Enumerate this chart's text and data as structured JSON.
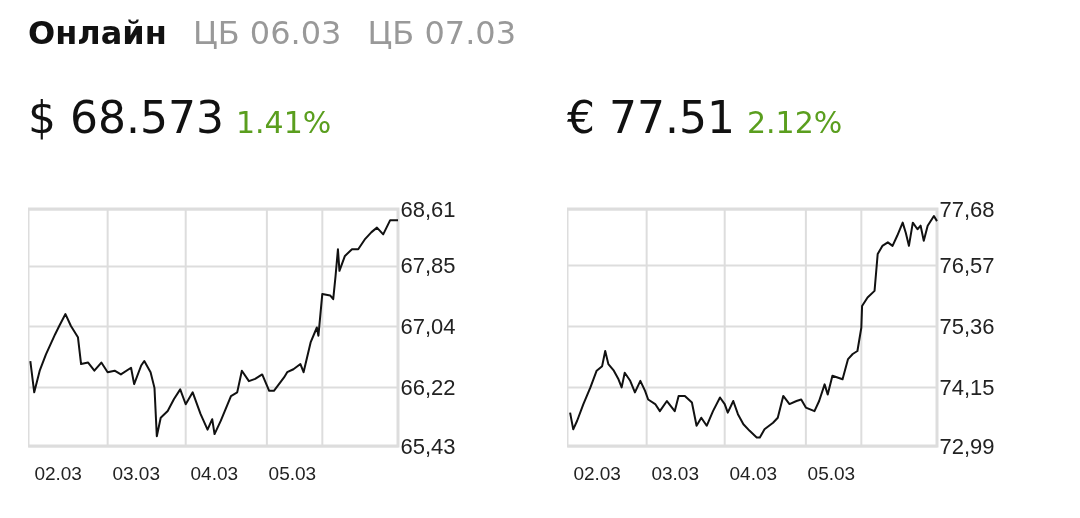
{
  "chart_data": [
    {
      "type": "line",
      "title": "$ 68.573",
      "subtitle": "1.41%",
      "annotations": [
        "Онлайн",
        "ЦБ 06.03",
        "ЦБ 07.03"
      ],
      "x": [
        "--03-01T15:36",
        "--03-01T16:48",
        "--03-01T18:29",
        "--03-01T20:24",
        "--03-01T23:14",
        "--03-02T00:29",
        "--03-02T02:24",
        "--03-02T04:05",
        "--03-02T06:14",
        "--03-02T07:12",
        "--03-02T09:22",
        "--03-02T11:17",
        "--03-02T13:26",
        "--03-02T15:22",
        "--03-02T17:31",
        "--03-02T19:26",
        "--03-02T22:34",
        "--03-02T23:31",
        "--03-03T01:41",
        "--03-03T02:38",
        "--03-03T04:34",
        "--03-03T05:46",
        "--03-03T06:29",
        "--03-03T07:41",
        "--03-03T09:50",
        "--03-03T11:46",
        "--03-03T13:41",
        "--03-03T15:22",
        "--03-03T17:31",
        "--03-03T19:55",
        "--03-03T22:05",
        "--03-03T23:31",
        "--03-04T00:14",
        "--03-04T02:10",
        "--03-04T05:17",
        "--03-04T07:12",
        "--03-04T08:38",
        "--03-04T10:48",
        "--03-04T12:43",
        "--03-04T14:53",
        "--03-04T17:02",
        "--03-04T18:29",
        "--03-04T21:36",
        "--03-04T22:34",
        "--03-05T00:29",
        "--03-05T02:38",
        "--03-05T03:36",
        "--03-05T05:46",
        "--03-05T07:41",
        "--03-05T08:10",
        "--03-05T09:22",
        "--03-05T11:46",
        "--03-05T12:43",
        "--03-05T13:26",
        "--03-05T14:10",
        "--03-05T14:38",
        "--03-05T16:19",
        "--03-05T18:29",
        "--03-05T20:24",
        "--03-05T22:34",
        "--03-06T00:29",
        "--03-06T02:10",
        "--03-06T04:05",
        "--03-06T06:14",
        "--03-06T08:38"
      ],
      "series": [
        {
          "color": "#111111",
          "values": [
            66.57,
            66.15,
            66.44,
            66.66,
            66.93,
            67.04,
            67.2,
            67.04,
            66.89,
            66.53,
            66.55,
            66.44,
            66.55,
            66.42,
            66.44,
            66.39,
            66.48,
            66.26,
            66.51,
            66.57,
            66.42,
            66.21,
            65.56,
            65.81,
            65.9,
            66.06,
            66.19,
            65.99,
            66.15,
            65.86,
            65.65,
            65.79,
            65.59,
            65.77,
            66.1,
            66.15,
            66.44,
            66.3,
            66.33,
            66.39,
            66.17,
            66.17,
            66.35,
            66.42,
            66.46,
            66.53,
            66.42,
            66.82,
            67.02,
            66.91,
            67.47,
            67.45,
            67.4,
            67.71,
            68.07,
            67.78,
            67.98,
            68.07,
            68.07,
            68.21,
            68.3,
            68.36,
            68.27,
            68.46,
            68.46
          ]
        }
      ],
      "xlim": [
        "--03-01T14:53",
        "--03-06T08:38"
      ],
      "xticks": [
        {
          "value": "--03-02",
          "label": "02.03"
        },
        {
          "value": "--03-03",
          "label": "03.03"
        },
        {
          "value": "--03-04",
          "label": "04.03"
        },
        {
          "value": "--03-05",
          "label": "05.03"
        },
        {
          "value": "--03-02T15:22",
          "label": null
        },
        {
          "value": "--03-03T15:22",
          "label": null
        },
        {
          "value": "--03-04T16:19",
          "label": null
        },
        {
          "value": "--03-05T09:22",
          "label": null
        }
      ],
      "ylim": [
        65.43,
        68.61
      ],
      "yticks": [
        {
          "value": 65.43,
          "label": "65,43"
        },
        {
          "value": 66.22,
          "label": "66,22"
        },
        {
          "value": 67.04,
          "label": "67,04"
        },
        {
          "value": 67.85,
          "label": "67,85"
        },
        {
          "value": 68.61,
          "label": "68,61"
        }
      ],
      "grid": true
    },
    {
      "type": "line",
      "title": "€ 77.51",
      "subtitle": "2.12%",
      "x": [
        "--03-01T15:50",
        "--03-01T16:48",
        "--03-01T18:00",
        "--03-01T19:55",
        "--03-01T22:05",
        "--03-02T00:00",
        "--03-02T01:41",
        "--03-02T02:38",
        "--03-02T03:36",
        "--03-02T05:17",
        "--03-02T06:43",
        "--03-02T07:41",
        "--03-02T08:38",
        "--03-02T10:19",
        "--03-02T11:46",
        "--03-02T13:26",
        "--03-02T14:53",
        "--03-02T15:50",
        "--03-02T18:00",
        "--03-02T19:26",
        "--03-02T21:36",
        "--03-03T00:00",
        "--03-03T01:12",
        "--03-03T03:07",
        "--03-03T05:17",
        "--03-03T06:43",
        "--03-03T08:10",
        "--03-03T09:50",
        "--03-03T11:46",
        "--03-03T13:55",
        "--03-03T15:22",
        "--03-03T16:19",
        "--03-03T18:00",
        "--03-03T19:26",
        "--03-03T21:07",
        "--03-03T23:02",
        "--03-04T01:12",
        "--03-04T02:10",
        "--03-04T03:36",
        "--03-04T06:14",
        "--03-04T07:41",
        "--03-04T09:22",
        "--03-04T11:17",
        "--03-04T13:26",
        "--03-04T14:53",
        "--03-04T16:19",
        "--03-04T18:58",
        "--03-04T20:24",
        "--03-04T22:05",
        "--03-04T23:02",
        "--03-05T00:29",
        "--03-05T03:36",
        "--03-05T05:17",
        "--03-05T06:43",
        "--03-05T08:10",
        "--03-05T09:22",
        "--03-05T09:36",
        "--03-05T11:17",
        "--03-05T13:26",
        "--03-05T14:24",
        "--03-05T15:50",
        "--03-05T17:31",
        "--03-05T18:58",
        "--03-05T20:24",
        "--03-05T22:05",
        "--03-05T23:02",
        "--03-06T00:00",
        "--03-06T01:12",
        "--03-06T02:38",
        "--03-06T03:36",
        "--03-06T04:34",
        "--03-06T05:46",
        "--03-06T07:41",
        "--03-06T08:38"
      ],
      "series": [
        {
          "color": "#111111",
          "values": [
            73.65,
            73.32,
            73.49,
            73.82,
            74.15,
            74.48,
            74.57,
            74.87,
            74.61,
            74.48,
            74.31,
            74.15,
            74.44,
            74.28,
            74.05,
            74.28,
            74.08,
            73.91,
            73.82,
            73.68,
            73.88,
            73.68,
            73.98,
            73.98,
            73.85,
            73.39,
            73.55,
            73.39,
            73.68,
            73.95,
            73.82,
            73.65,
            73.88,
            73.62,
            73.42,
            73.29,
            73.16,
            73.16,
            73.32,
            73.45,
            73.55,
            73.98,
            73.82,
            73.88,
            73.91,
            73.75,
            73.68,
            73.88,
            74.21,
            74.01,
            74.38,
            74.31,
            74.71,
            74.81,
            74.87,
            75.33,
            75.76,
            75.93,
            76.06,
            76.79,
            76.95,
            77.02,
            76.95,
            77.15,
            77.41,
            77.21,
            76.95,
            77.41,
            77.28,
            77.35,
            77.05,
            77.35,
            77.54,
            77.44
          ]
        }
      ],
      "xlim": [
        "--03-01T14:53",
        "--03-06T08:38"
      ],
      "xticks": [
        {
          "value": "--03-02",
          "label": "02.03"
        },
        {
          "value": "--03-03",
          "label": "03.03"
        },
        {
          "value": "--03-04",
          "label": "04.03"
        },
        {
          "value": "--03-05",
          "label": "05.03"
        },
        {
          "value": "--03-02T15:22",
          "label": null
        },
        {
          "value": "--03-03T15:22",
          "label": null
        },
        {
          "value": "--03-04T16:19",
          "label": null
        },
        {
          "value": "--03-05T09:22",
          "label": null
        }
      ],
      "ylim": [
        72.99,
        77.68
      ],
      "yticks": [
        {
          "value": 72.99,
          "label": "72,99"
        },
        {
          "value": 74.15,
          "label": "74,15"
        },
        {
          "value": 75.36,
          "label": "75,36"
        },
        {
          "value": 76.57,
          "label": "76,57"
        },
        {
          "value": 77.68,
          "label": "77,68"
        }
      ],
      "grid": true
    }
  ]
}
